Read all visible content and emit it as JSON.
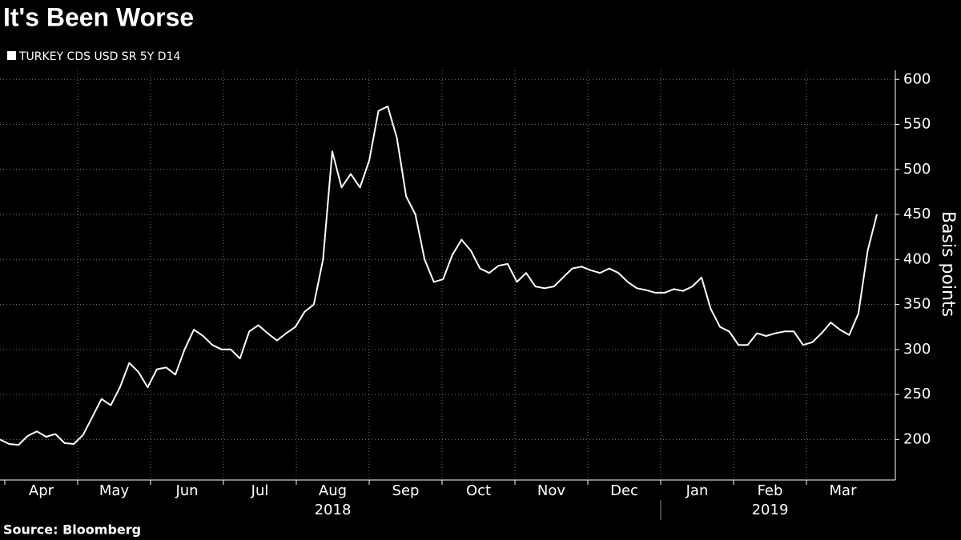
{
  "chart_data": {
    "type": "line",
    "title": "It's Been Worse",
    "source": "Source: Bloomberg",
    "y_label": "Basis points",
    "months": [
      "Apr",
      "May",
      "Jun",
      "Jul",
      "Aug",
      "Sep",
      "Oct",
      "Nov",
      "Dec",
      "Jan",
      "Feb",
      "Mar"
    ],
    "years": [
      "2018",
      "2019"
    ],
    "series": [
      {
        "name": "TURKEY CDS USD SR 5Y D14",
        "color": "#ffffff",
        "values": [
          200,
          195,
          194,
          204,
          209,
          203,
          206,
          196,
          195,
          205,
          225,
          245,
          238,
          258,
          285,
          275,
          258,
          278,
          280,
          272,
          300,
          322,
          315,
          305,
          300,
          300,
          290,
          320,
          327,
          318,
          310,
          318,
          325,
          342,
          350,
          400,
          520,
          480,
          495,
          480,
          510,
          565,
          570,
          535,
          470,
          450,
          400,
          375,
          378,
          405,
          422,
          410,
          390,
          385,
          393,
          395,
          375,
          385,
          370,
          368,
          370,
          380,
          390,
          392,
          388,
          385,
          390,
          385,
          375,
          368,
          366,
          363,
          363,
          367,
          365,
          370,
          380,
          345,
          325,
          320,
          305,
          305,
          318,
          315,
          318,
          320,
          320,
          305,
          308,
          318,
          330,
          322,
          316,
          340,
          410,
          450
        ]
      }
    ],
    "ylim": [
      155,
      610
    ],
    "yticks": [
      200,
      250,
      300,
      350,
      400,
      450,
      500,
      550,
      600
    ],
    "grid": true
  }
}
